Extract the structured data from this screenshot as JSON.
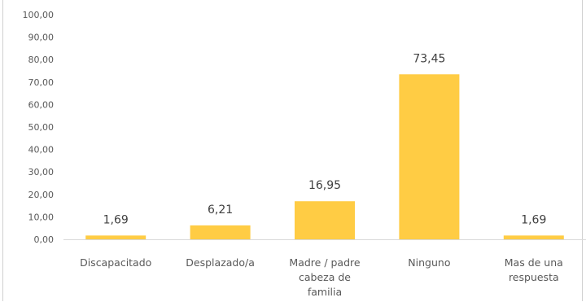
{
  "chart_data": {
    "type": "bar",
    "categories": [
      [
        "Discapacitado"
      ],
      [
        "Desplazado/a"
      ],
      [
        "Madre / padre",
        "cabeza de",
        "familia"
      ],
      [
        "Ninguno"
      ],
      [
        "Mas de una",
        "respuesta"
      ]
    ],
    "values": [
      1.69,
      6.21,
      16.95,
      73.45,
      1.69
    ],
    "value_labels": [
      "1,69",
      "6,21",
      "16,95",
      "73,45",
      "1,69"
    ],
    "y_ticks": [
      "0,00",
      "10,00",
      "20,00",
      "30,00",
      "40,00",
      "50,00",
      "60,00",
      "70,00",
      "80,00",
      "90,00",
      "100,00"
    ],
    "ylim": [
      0,
      100
    ],
    "grid": false,
    "bar_color": "#FFCC44",
    "axis_color": "#d9d9d9"
  }
}
